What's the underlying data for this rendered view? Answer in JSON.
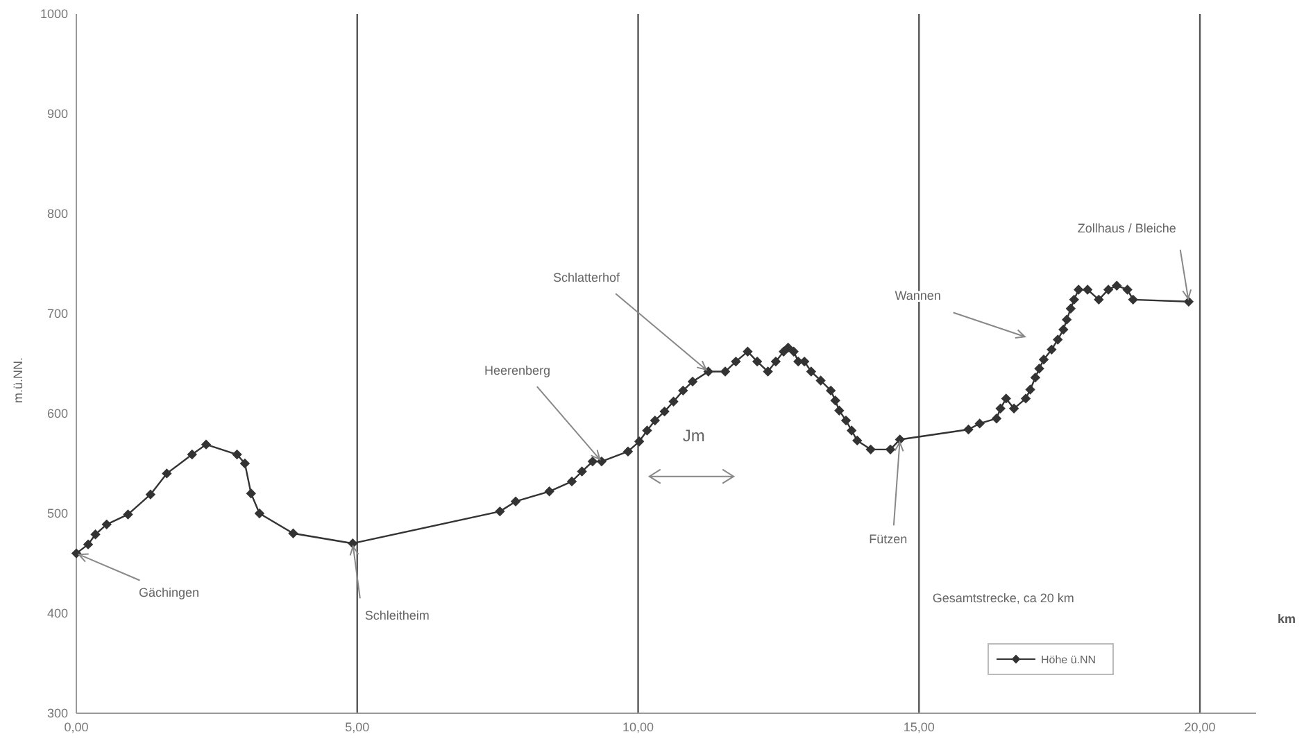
{
  "chart_data": {
    "type": "line",
    "ylabel": "m.ü.NN.",
    "xlabel": "km",
    "x": [
      0,
      0.21,
      0.34,
      0.54,
      0.92,
      1.32,
      1.61,
      2.06,
      2.31,
      2.86,
      3.0,
      3.11,
      3.26,
      3.86,
      4.92,
      7.54,
      7.82,
      8.42,
      8.82,
      9.0,
      9.19,
      9.35,
      9.82,
      10.02,
      10.16,
      10.3,
      10.47,
      10.63,
      10.8,
      10.97,
      11.25,
      11.55,
      11.74,
      11.95,
      12.12,
      12.31,
      12.45,
      12.59,
      12.67,
      12.77,
      12.85,
      12.96,
      13.08,
      13.25,
      13.43,
      13.51,
      13.58,
      13.7,
      13.8,
      13.9,
      14.14,
      14.49,
      14.66,
      15.88,
      16.08,
      16.38,
      16.45,
      16.55,
      16.69,
      16.9,
      16.98,
      17.07,
      17.14,
      17.22,
      17.36,
      17.47,
      17.57,
      17.63,
      17.7,
      17.76,
      17.84,
      18.0,
      18.2,
      18.37,
      18.52,
      18.71,
      18.81,
      19.8
    ],
    "series": [
      {
        "name": "Höhe ü.NN",
        "color": "#333333",
        "values": [
          460,
          469,
          479,
          489,
          499,
          519,
          540,
          559,
          569,
          559,
          550,
          520,
          500,
          480,
          470,
          502,
          512,
          522,
          532,
          542,
          552,
          552,
          562,
          572,
          583,
          593,
          602,
          612,
          623,
          632,
          642,
          642,
          652,
          662,
          652,
          642,
          652,
          662,
          666,
          662,
          652,
          652,
          642,
          633,
          623,
          613,
          603,
          593,
          583,
          573,
          564,
          564,
          574,
          584,
          590,
          595,
          605,
          615,
          605,
          615,
          624,
          636,
          645,
          654,
          664,
          674,
          684,
          694,
          705,
          714,
          724,
          724,
          714,
          724,
          728,
          724,
          714,
          712
        ]
      }
    ],
    "xlim": [
      0,
      21
    ],
    "xticks": [
      {
        "value": 0,
        "label": "0,00"
      },
      {
        "value": 5,
        "label": "5,00"
      },
      {
        "value": 10,
        "label": "10,00"
      },
      {
        "value": 15,
        "label": "15,00"
      },
      {
        "value": 20,
        "label": "20,00"
      }
    ],
    "ylim": [
      300,
      1000
    ],
    "yticks": [
      300,
      400,
      500,
      600,
      700,
      800,
      900,
      1000
    ],
    "grid": "x",
    "marker": "diamond",
    "line_style": "solid",
    "legend": "bottom right",
    "annotations": [
      {
        "text": "Gächingen",
        "x": 0,
        "y": 460
      },
      {
        "text": "Schleitheim",
        "x": 4.92,
        "y": 470
      },
      {
        "text": "Heerenberg",
        "x": 9.35,
        "y": 552
      },
      {
        "text": "Schlatterhof",
        "x": 11.25,
        "y": 642
      },
      "Jm",
      "Wannen",
      {
        "text": "Fützen",
        "x": 14.66,
        "y": 574
      },
      {
        "text": "Zollhaus / Bleiche",
        "x": 19.8,
        "y": 712
      },
      "Gesamtstrecke, ca 20 km"
    ]
  }
}
